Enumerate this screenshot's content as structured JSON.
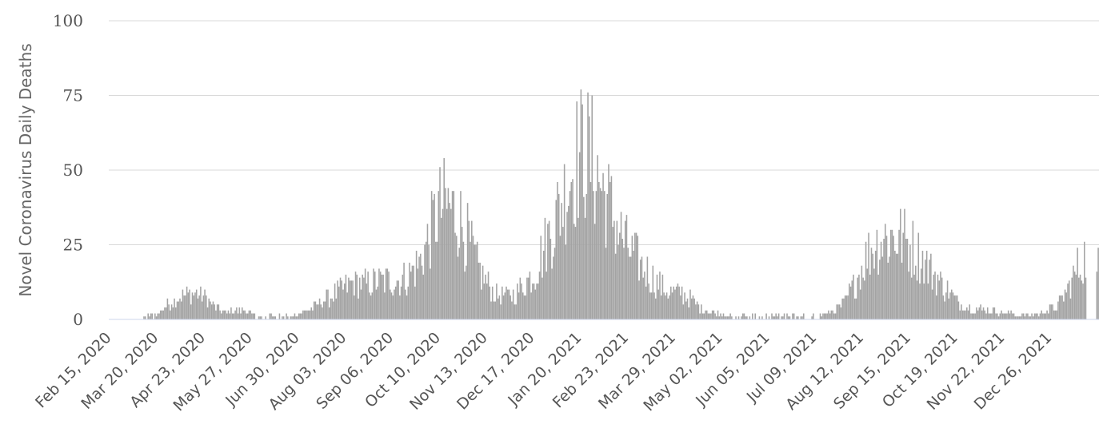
{
  "chart_data": {
    "type": "bar",
    "title": "",
    "xlabel": "",
    "ylabel": "Novel Coronavirus Daily Deaths",
    "ylim": [
      0,
      100
    ],
    "y_ticks": [
      0,
      25,
      50,
      75,
      100
    ],
    "grid": "horizontal",
    "legend": "none",
    "x_tick_labels": [
      "Feb 15, 2020",
      "Mar 20, 2020",
      "Apr 23, 2020",
      "May 27, 2020",
      "Jun 30, 2020",
      "Aug 03, 2020",
      "Sep 06, 2020",
      "Oct 10, 2020",
      "Nov 13, 2020",
      "Dec 17, 2020",
      "Jan 20, 2021",
      "Feb 23, 2021",
      "Mar 29, 2021",
      "May 02, 2021",
      "Jun 05, 2021",
      "Jul 09, 2021",
      "Aug 12, 2021",
      "Sep 15, 2021",
      "Oct 19, 2021",
      "Nov 22, 2021",
      "Dec 26, 2021"
    ],
    "x_start": "Feb 15, 2020",
    "x_end": "Jan 30, 2022",
    "bar_color": "#a3a3a3",
    "series": [
      {
        "weekly_dates": [
          "Feb 15, 2020",
          "Feb 22, 2020",
          "Feb 29, 2020",
          "Mar 07, 2020",
          "Mar 14, 2020",
          "Mar 21, 2020",
          "Mar 28, 2020",
          "Apr 04, 2020",
          "Apr 11, 2020",
          "Apr 18, 2020",
          "Apr 25, 2020",
          "May 02, 2020",
          "May 09, 2020",
          "May 16, 2020",
          "May 23, 2020",
          "May 30, 2020",
          "Jun 06, 2020",
          "Jun 13, 2020",
          "Jun 20, 2020",
          "Jun 27, 2020",
          "Jul 04, 2020",
          "Jul 11, 2020",
          "Jul 18, 2020",
          "Jul 25, 2020",
          "Aug 01, 2020",
          "Aug 08, 2020",
          "Aug 15, 2020",
          "Aug 22, 2020",
          "Aug 29, 2020",
          "Sep 05, 2020",
          "Sep 12, 2020",
          "Sep 19, 2020",
          "Sep 26, 2020",
          "Oct 03, 2020",
          "Oct 10, 2020",
          "Oct 17, 2020",
          "Oct 24, 2020",
          "Oct 31, 2020",
          "Nov 07, 2020",
          "Nov 14, 2020",
          "Nov 21, 2020",
          "Nov 28, 2020",
          "Dec 05, 2020",
          "Dec 12, 2020",
          "Dec 19, 2020",
          "Dec 26, 2020",
          "Jan 02, 2021",
          "Jan 09, 2021",
          "Jan 16, 2021",
          "Jan 23, 2021",
          "Jan 30, 2021",
          "Feb 06, 2021",
          "Feb 13, 2021",
          "Feb 20, 2021",
          "Feb 27, 2021",
          "Mar 06, 2021",
          "Mar 13, 2021",
          "Mar 20, 2021",
          "Mar 27, 2021",
          "Apr 03, 2021",
          "Apr 10, 2021",
          "Apr 17, 2021",
          "Apr 24, 2021",
          "May 01, 2021",
          "May 08, 2021",
          "May 15, 2021",
          "May 22, 2021",
          "May 29, 2021",
          "Jun 05, 2021",
          "Jun 12, 2021",
          "Jun 19, 2021",
          "Jun 26, 2021",
          "Jul 03, 2021",
          "Jul 10, 2021",
          "Jul 17, 2021",
          "Jul 24, 2021",
          "Jul 31, 2021",
          "Aug 07, 2021",
          "Aug 14, 2021",
          "Aug 21, 2021",
          "Aug 28, 2021",
          "Sep 04, 2021",
          "Sep 11, 2021",
          "Sep 18, 2021",
          "Sep 25, 2021",
          "Oct 02, 2021",
          "Oct 09, 2021",
          "Oct 16, 2021",
          "Oct 23, 2021",
          "Oct 30, 2021",
          "Nov 06, 2021",
          "Nov 13, 2021",
          "Nov 20, 2021",
          "Nov 27, 2021",
          "Dec 04, 2021",
          "Dec 11, 2021",
          "Dec 18, 2021",
          "Dec 25, 2021",
          "Jan 01, 2022",
          "Jan 08, 2022",
          "Jan 15, 2022",
          "Jan 22, 2022",
          "Jan 29, 2022"
        ],
        "weekly_level": [
          0,
          0,
          0,
          0,
          0.3,
          2,
          5,
          7,
          8,
          9,
          7,
          4,
          2,
          3,
          3,
          1.5,
          0.8,
          0.8,
          1,
          1.5,
          2.5,
          4,
          6,
          8,
          10,
          12,
          12,
          12,
          13,
          13,
          13,
          15,
          19,
          27,
          37,
          38,
          35,
          27,
          18,
          12,
          8,
          8,
          9,
          12,
          16,
          25,
          33,
          42,
          52,
          57,
          52,
          43,
          35,
          27,
          22,
          18,
          14,
          11,
          9,
          9,
          7,
          4,
          2.5,
          2,
          1.5,
          1,
          0.8,
          0.6,
          0.5,
          0.4,
          0.3,
          0.3,
          0.5,
          1.2,
          2,
          3,
          6,
          12,
          20,
          25,
          27,
          28,
          27,
          24,
          20,
          16,
          12,
          8,
          5,
          4,
          3.5,
          3,
          2.5,
          2,
          1.5,
          1.5,
          2,
          3,
          5,
          10,
          17,
          22
        ]
      }
    ]
  }
}
